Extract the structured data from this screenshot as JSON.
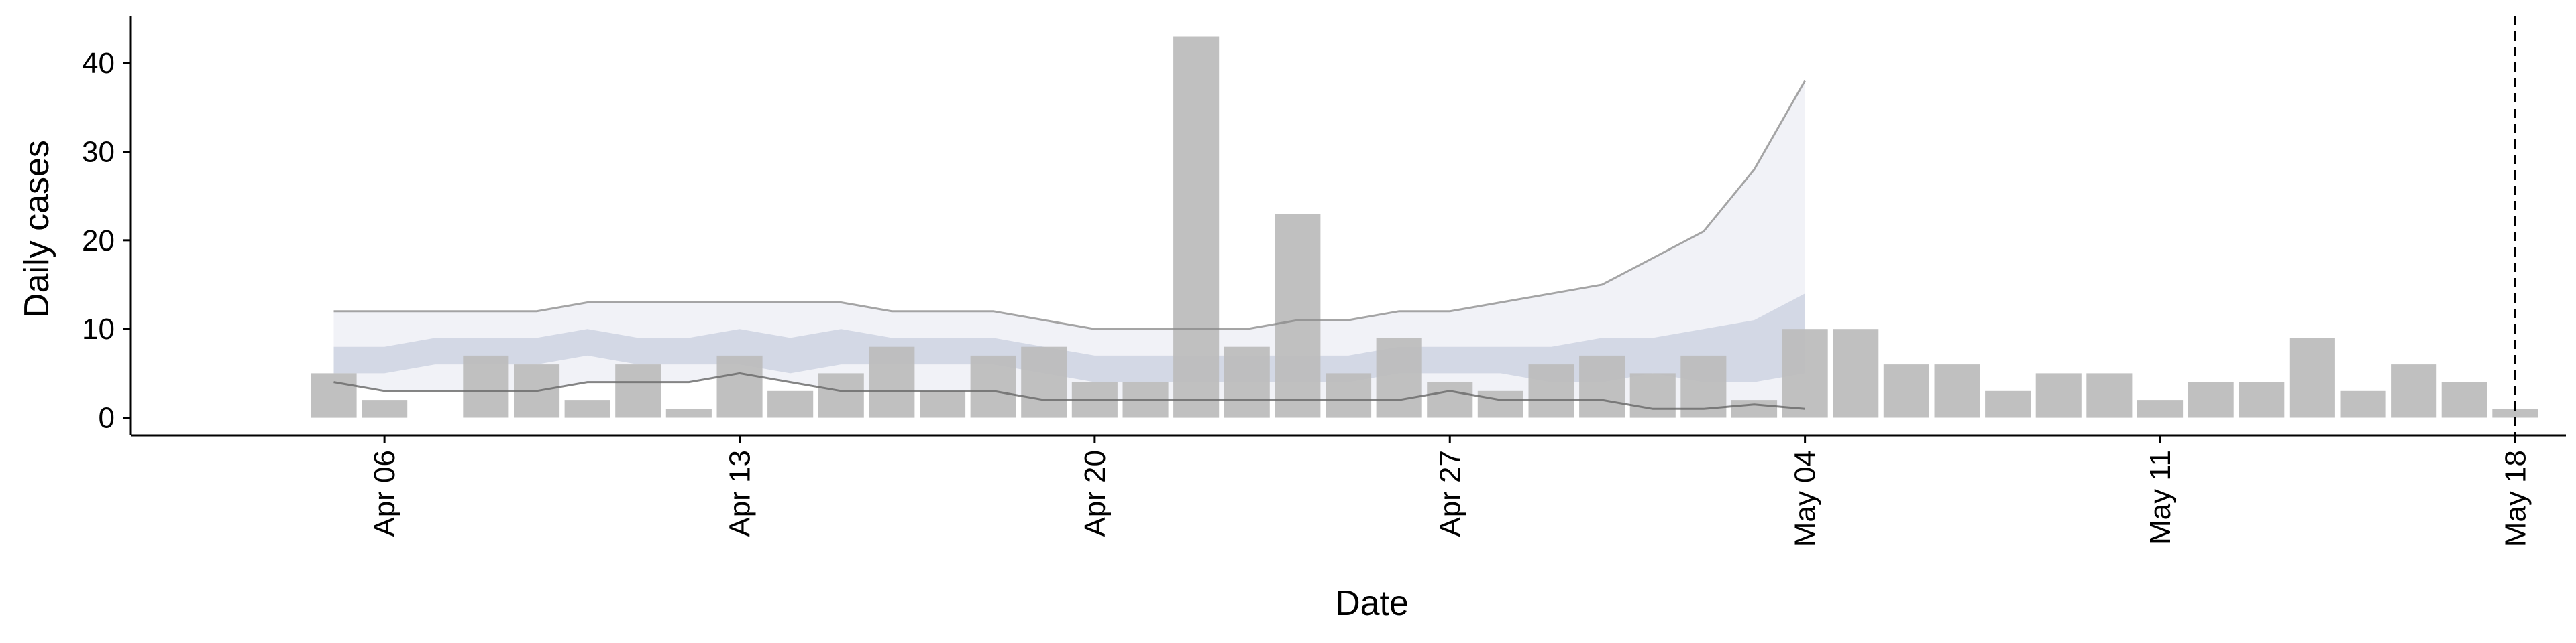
{
  "chart_data": {
    "type": "bar",
    "xlabel": "Date",
    "ylabel": "Daily cases",
    "ylim": [
      -2,
      45
    ],
    "y_ticks": [
      0,
      10,
      20,
      30,
      40
    ],
    "x_tick_labels": [
      "Apr 06",
      "Apr 13",
      "Apr 20",
      "Apr 27",
      "May 04",
      "May 11",
      "May 18"
    ],
    "x_tick_dates": [
      "2020-04-06",
      "2020-04-13",
      "2020-04-20",
      "2020-04-27",
      "2020-05-04",
      "2020-05-11",
      "2020-05-18"
    ],
    "x_range": [
      "2020-04-01",
      "2020-05-19"
    ],
    "dates": [
      "2020-04-05",
      "2020-04-06",
      "2020-04-07",
      "2020-04-08",
      "2020-04-09",
      "2020-04-10",
      "2020-04-11",
      "2020-04-12",
      "2020-04-13",
      "2020-04-14",
      "2020-04-15",
      "2020-04-16",
      "2020-04-17",
      "2020-04-18",
      "2020-04-19",
      "2020-04-20",
      "2020-04-21",
      "2020-04-22",
      "2020-04-23",
      "2020-04-24",
      "2020-04-25",
      "2020-04-26",
      "2020-04-27",
      "2020-04-28",
      "2020-04-29",
      "2020-04-30",
      "2020-05-01",
      "2020-05-02",
      "2020-05-03",
      "2020-05-04",
      "2020-05-05",
      "2020-05-06",
      "2020-05-07",
      "2020-05-08",
      "2020-05-09",
      "2020-05-10",
      "2020-05-11",
      "2020-05-12",
      "2020-05-13",
      "2020-05-14",
      "2020-05-15",
      "2020-05-16",
      "2020-05-17",
      "2020-05-18"
    ],
    "cases": [
      5,
      2,
      0,
      7,
      6,
      2,
      6,
      1,
      7,
      3,
      5,
      8,
      3,
      7,
      8,
      4,
      4,
      43,
      8,
      23,
      5,
      9,
      4,
      3,
      6,
      7,
      5,
      7,
      2,
      10,
      10,
      6,
      6,
      3,
      5,
      5,
      2,
      4,
      4,
      9,
      3,
      6,
      4,
      1
    ],
    "estimate_dates": [
      "2020-04-05",
      "2020-04-06",
      "2020-04-07",
      "2020-04-08",
      "2020-04-09",
      "2020-04-10",
      "2020-04-11",
      "2020-04-12",
      "2020-04-13",
      "2020-04-14",
      "2020-04-15",
      "2020-04-16",
      "2020-04-17",
      "2020-04-18",
      "2020-04-19",
      "2020-04-20",
      "2020-04-21",
      "2020-04-22",
      "2020-04-23",
      "2020-04-24",
      "2020-04-25",
      "2020-04-26",
      "2020-04-27",
      "2020-04-28",
      "2020-04-29",
      "2020-04-30",
      "2020-05-01",
      "2020-05-02",
      "2020-05-03",
      "2020-05-04"
    ],
    "outer_upper": [
      12,
      12,
      12,
      12,
      12,
      13,
      13,
      13,
      13,
      13,
      13,
      12,
      12,
      12,
      11,
      10,
      10,
      10,
      10,
      11,
      11,
      12,
      12,
      13,
      14,
      15,
      18,
      21,
      28,
      38
    ],
    "outer_lower": [
      4,
      3,
      3,
      3,
      3,
      4,
      4,
      4,
      5,
      4,
      3,
      3,
      3,
      3,
      2,
      2,
      2,
      2,
      2,
      2,
      2,
      2,
      3,
      2,
      2,
      2,
      1,
      1,
      1.5,
      1
    ],
    "inner_upper": [
      8,
      8,
      9,
      9,
      9,
      10,
      9,
      9,
      10,
      9,
      10,
      9,
      9,
      9,
      8,
      7,
      7,
      7,
      7,
      7,
      7,
      8,
      8,
      8,
      8,
      9,
      9,
      10,
      11,
      14
    ],
    "inner_lower": [
      5,
      5,
      6,
      6,
      6,
      7,
      6,
      6,
      6,
      5,
      6,
      6,
      6,
      6,
      5,
      4,
      4,
      4,
      4,
      4,
      4,
      5,
      5,
      5,
      4,
      4,
      5,
      4,
      4,
      5
    ],
    "forecast_date": "2020-05-18",
    "grid": false,
    "legend": "none",
    "colors": {
      "bars": "#bdbdbd",
      "outer_band": "#f1f2f7",
      "inner_band": "#ced3e2",
      "outer_line": "#888888",
      "lower_line": "#666666",
      "axis": "#000000",
      "forecast_line": "#000000"
    }
  }
}
